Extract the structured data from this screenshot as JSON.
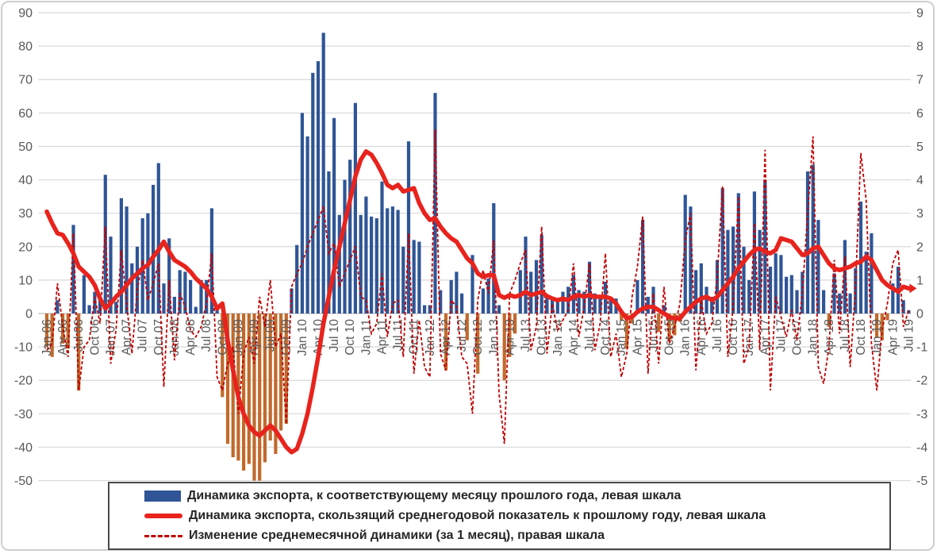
{
  "chart_data": {
    "type": "bar",
    "subtype": "combo-bar-line-dualaxis",
    "title": "",
    "x_range_label": "Jan 06 – Jul 19 (monthly)",
    "x_tick_labels": [
      "Jan 06",
      "Apr 06",
      "Jul 06",
      "Oct 06",
      "Jan 07",
      "Apr 07",
      "Jul 07",
      "Oct 07",
      "Jan 08",
      "Apr 08",
      "Jul 08",
      "Oct 08",
      "Jan 09",
      "Apr 09",
      "Jul 09",
      "Oct 09",
      "Jan 10",
      "Apr 10",
      "Jul 10",
      "Oct 10",
      "Jan 11",
      "Apr 11",
      "Jul 11",
      "Oct 11",
      "Jan 12",
      "Apr 12",
      "Jul 12",
      "Oct 12",
      "Jan 13",
      "Apr 13",
      "Jul 13",
      "Oct 13",
      "Jan 14",
      "Apr 14",
      "Jul 14",
      "Oct 14",
      "Jan 15",
      "Apr 15",
      "Jul 15",
      "Oct 15",
      "Jan 16",
      "Apr 16",
      "Jul 16",
      "Oct 16",
      "Jan 17",
      "Apr 17",
      "Jul 17",
      "Oct 17",
      "Jan 18",
      "Apr 18",
      "Jul 18",
      "Oct 18",
      "Jan 19",
      "Apr 19",
      "Jul 19"
    ],
    "left_axis": {
      "min": -50,
      "max": 90,
      "step": 10,
      "ticks": [
        90,
        80,
        70,
        60,
        50,
        40,
        30,
        20,
        10,
        0,
        -10,
        -20,
        -30,
        -40,
        -50
      ]
    },
    "right_axis": {
      "min": -5,
      "max": 9,
      "step": 1,
      "ticks": [
        9,
        8,
        7,
        6,
        5,
        4,
        3,
        2,
        1,
        0,
        -1,
        -2,
        -3,
        -4,
        -5
      ]
    },
    "grid": true,
    "legend_position": "bottom",
    "colors": {
      "bar_positive": "#2f5597",
      "bar_negative": "#c2692b",
      "avg_line": "#e8231d",
      "change_line": "#c00000",
      "gridline": "#d9d9d9",
      "zero_line": "#bfbfbf",
      "axis_text": "#595959"
    },
    "series": [
      {
        "name": "Динамика экспорта, к соответствующему месяцу прошлого года, левая шкала",
        "type": "bar",
        "axis": "left",
        "values": [
          -10,
          -13,
          4,
          -9,
          -10.5,
          26.5,
          -23,
          11.5,
          2.5,
          6.5,
          4.5,
          41.5,
          23,
          3.5,
          34.5,
          32,
          15,
          20,
          28.5,
          30,
          38.5,
          45,
          9,
          22.5,
          5,
          13,
          12.5,
          10,
          2,
          10,
          10,
          31.5,
          2,
          -25,
          -39,
          -43,
          -44,
          -47,
          -45,
          -50,
          -50,
          -44.5,
          -38,
          -42,
          -35,
          -33,
          7.5,
          20.5,
          60,
          53,
          72,
          75.5,
          84,
          42.5,
          58.5,
          29.5,
          40,
          46,
          63,
          29.5,
          35,
          29,
          28.5,
          39.5,
          31.5,
          32,
          31,
          20,
          51.5,
          22,
          21.5,
          2.5,
          2.5,
          66,
          7,
          -17,
          10,
          12.5,
          6,
          -8,
          17.5,
          -18,
          7.5,
          10.5,
          33,
          2.5,
          -20,
          -13,
          -6,
          13,
          23,
          12.5,
          16,
          23.5,
          5.5,
          4.5,
          4,
          6.5,
          8,
          11.5,
          7,
          6.5,
          15.5,
          6,
          5,
          9.5,
          5,
          4.5,
          -2,
          -10.5,
          -3,
          10,
          28,
          5,
          8,
          -5.5,
          2.5,
          -8,
          -6.5,
          -2.5,
          35.5,
          32,
          13,
          15,
          8,
          5,
          16,
          37.5,
          25,
          26,
          36,
          20,
          10,
          36.5,
          25,
          40,
          14,
          18,
          17.5,
          11,
          11.5,
          7,
          12.5,
          42.5,
          44.5,
          28,
          7,
          -4,
          12,
          6,
          22,
          6,
          13.5,
          33.5,
          18.5,
          24,
          -7,
          -8,
          -2,
          9,
          14,
          4,
          1
        ]
      },
      {
        "name": "Динамика экспорта, скользящий среднегодовой показатель к прошлому году, левая шкала",
        "type": "line",
        "axis": "left",
        "values": [
          30.5,
          27,
          24,
          23.5,
          21,
          18,
          14,
          12.5,
          11,
          8.5,
          4.5,
          1.5,
          3,
          5,
          6.5,
          8.5,
          10.5,
          12,
          13.5,
          14.5,
          17,
          19,
          21.5,
          18.5,
          16,
          15,
          14,
          12.5,
          10.5,
          9,
          7.5,
          5,
          1.5,
          3,
          -8,
          -17,
          -25,
          -30,
          -33.5,
          -35.5,
          -36.5,
          -35,
          -33.5,
          -35,
          -37.5,
          -40,
          -41.5,
          -40.5,
          -36,
          -30,
          -22,
          -13,
          -3,
          5,
          13,
          20,
          27,
          34,
          41,
          46,
          48.5,
          47.5,
          45,
          42,
          38.5,
          37.5,
          38.5,
          36.5,
          37,
          37.5,
          33,
          30,
          28,
          28.5,
          26,
          24,
          22.5,
          21.5,
          19,
          16.5,
          15,
          12,
          11,
          11.5,
          11.5,
          5.5,
          4.7,
          5.5,
          5,
          5.5,
          6.5,
          5.5,
          6,
          6.5,
          5.2,
          4.5,
          4,
          4.5,
          4,
          5,
          5.5,
          5,
          5.5,
          5,
          5,
          5,
          4.5,
          3,
          0.5,
          -1.5,
          -1,
          0.5,
          1.5,
          2,
          2,
          1,
          0,
          -1,
          -1.5,
          -1.5,
          0.5,
          2,
          3.5,
          4.5,
          5,
          4,
          5,
          7,
          9,
          11,
          13.5,
          15.5,
          17.5,
          19,
          19.5,
          18.5,
          18,
          19,
          22.5,
          22,
          21.5,
          19.5,
          17.5,
          18,
          19.5,
          20,
          17.5,
          15,
          13.5,
          13,
          13.5,
          14,
          15,
          15.5,
          17,
          16,
          13,
          10,
          8.5,
          7.5,
          6.5,
          8,
          7.5
        ]
      },
      {
        "name": "Изменение среднемесячной динамики (за 1 месяц), правая шкала",
        "type": "dashed-line",
        "axis": "right",
        "values": [
          -1.1,
          -0.9,
          0.9,
          -0.4,
          -1.3,
          2.4,
          -2.3,
          -1.0,
          -0.8,
          0.5,
          -0.3,
          2.6,
          -1.5,
          -0.5,
          1.9,
          0.3,
          -1.2,
          0.7,
          1.6,
          0.4,
          0.9,
          1.5,
          -2.2,
          1.0,
          -1.4,
          0.6,
          0.2,
          -0.5,
          -0.7,
          -0.4,
          0.3,
          1.8,
          -1.9,
          -2.3,
          -1.5,
          -1.0,
          -3.0,
          -1.2,
          -0.7,
          -1.5,
          0.5,
          -0.4,
          1.0,
          -1.0,
          -0.6,
          -3.3,
          0.8,
          1.2,
          1.5,
          2.0,
          2.4,
          2.8,
          3.2,
          1.8,
          2.1,
          0.8,
          1.2,
          1.6,
          2.0,
          0.5,
          0.4,
          -0.6,
          -0.3,
          1.2,
          -0.7,
          0.3,
          0.4,
          -1.3,
          2.4,
          -1.8,
          -0.2,
          -1.6,
          -1.9,
          5.5,
          -1.2,
          -1.7,
          0.4,
          0.2,
          -1.3,
          -1.5,
          -3.0,
          0.4,
          1.3,
          0.6,
          2.2,
          -2.4,
          -3.9,
          0.6,
          1.0,
          1.5,
          1.9,
          -1.1,
          -0.4,
          2.6,
          -1.2,
          0.3,
          -0.5,
          -0.2,
          0.1,
          1.5,
          -0.7,
          0.2,
          1.5,
          -1.1,
          -0.3,
          1.8,
          -1.3,
          -0.6,
          -1.9,
          -1.2,
          0.5,
          1.4,
          2.9,
          -1.8,
          0.6,
          -1.5,
          0.8,
          -0.9,
          -0.4,
          0.3,
          2.2,
          3.0,
          -1.7,
          0.4,
          -0.6,
          -0.3,
          1.1,
          3.8,
          -1.3,
          0.2,
          3.5,
          -1.5,
          -1.0,
          2.7,
          -1.1,
          4.9,
          -2.3,
          0.5,
          -0.1,
          -0.7,
          0.1,
          -0.8,
          0.6,
          3.0,
          5.3,
          -1.6,
          -2.1,
          -1.0,
          1.6,
          -0.6,
          1.7,
          -1.6,
          0.8,
          4.8,
          3.4,
          -0.9,
          -2.3,
          -0.5,
          0.3,
          1.5,
          1.9,
          -0.4,
          0.1
        ]
      }
    ]
  }
}
